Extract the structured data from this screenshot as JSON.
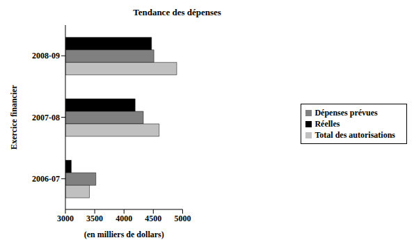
{
  "chart_data": {
    "type": "bar",
    "orientation": "horizontal",
    "title": "Tendance des dépenses",
    "xlabel": "(en milliers de dollars)",
    "ylabel": "Exercice financier",
    "categories": [
      "2008-09",
      "2007-08",
      "2006-07"
    ],
    "series": [
      {
        "name": "Réelles",
        "color": "#000000",
        "values": [
          4470,
          4190,
          3100
        ]
      },
      {
        "name": "Dépenses prévues",
        "color": "#808080",
        "values": [
          4510,
          4330,
          3520
        ]
      },
      {
        "name": "Total des autorisations",
        "color": "#c0c0c0",
        "values": [
          4900,
          4600,
          3410
        ]
      }
    ],
    "xlim": [
      3000,
      5000
    ],
    "xticks": [
      3000,
      3500,
      4000,
      4500,
      5000
    ],
    "grid": false,
    "legend": "right"
  }
}
